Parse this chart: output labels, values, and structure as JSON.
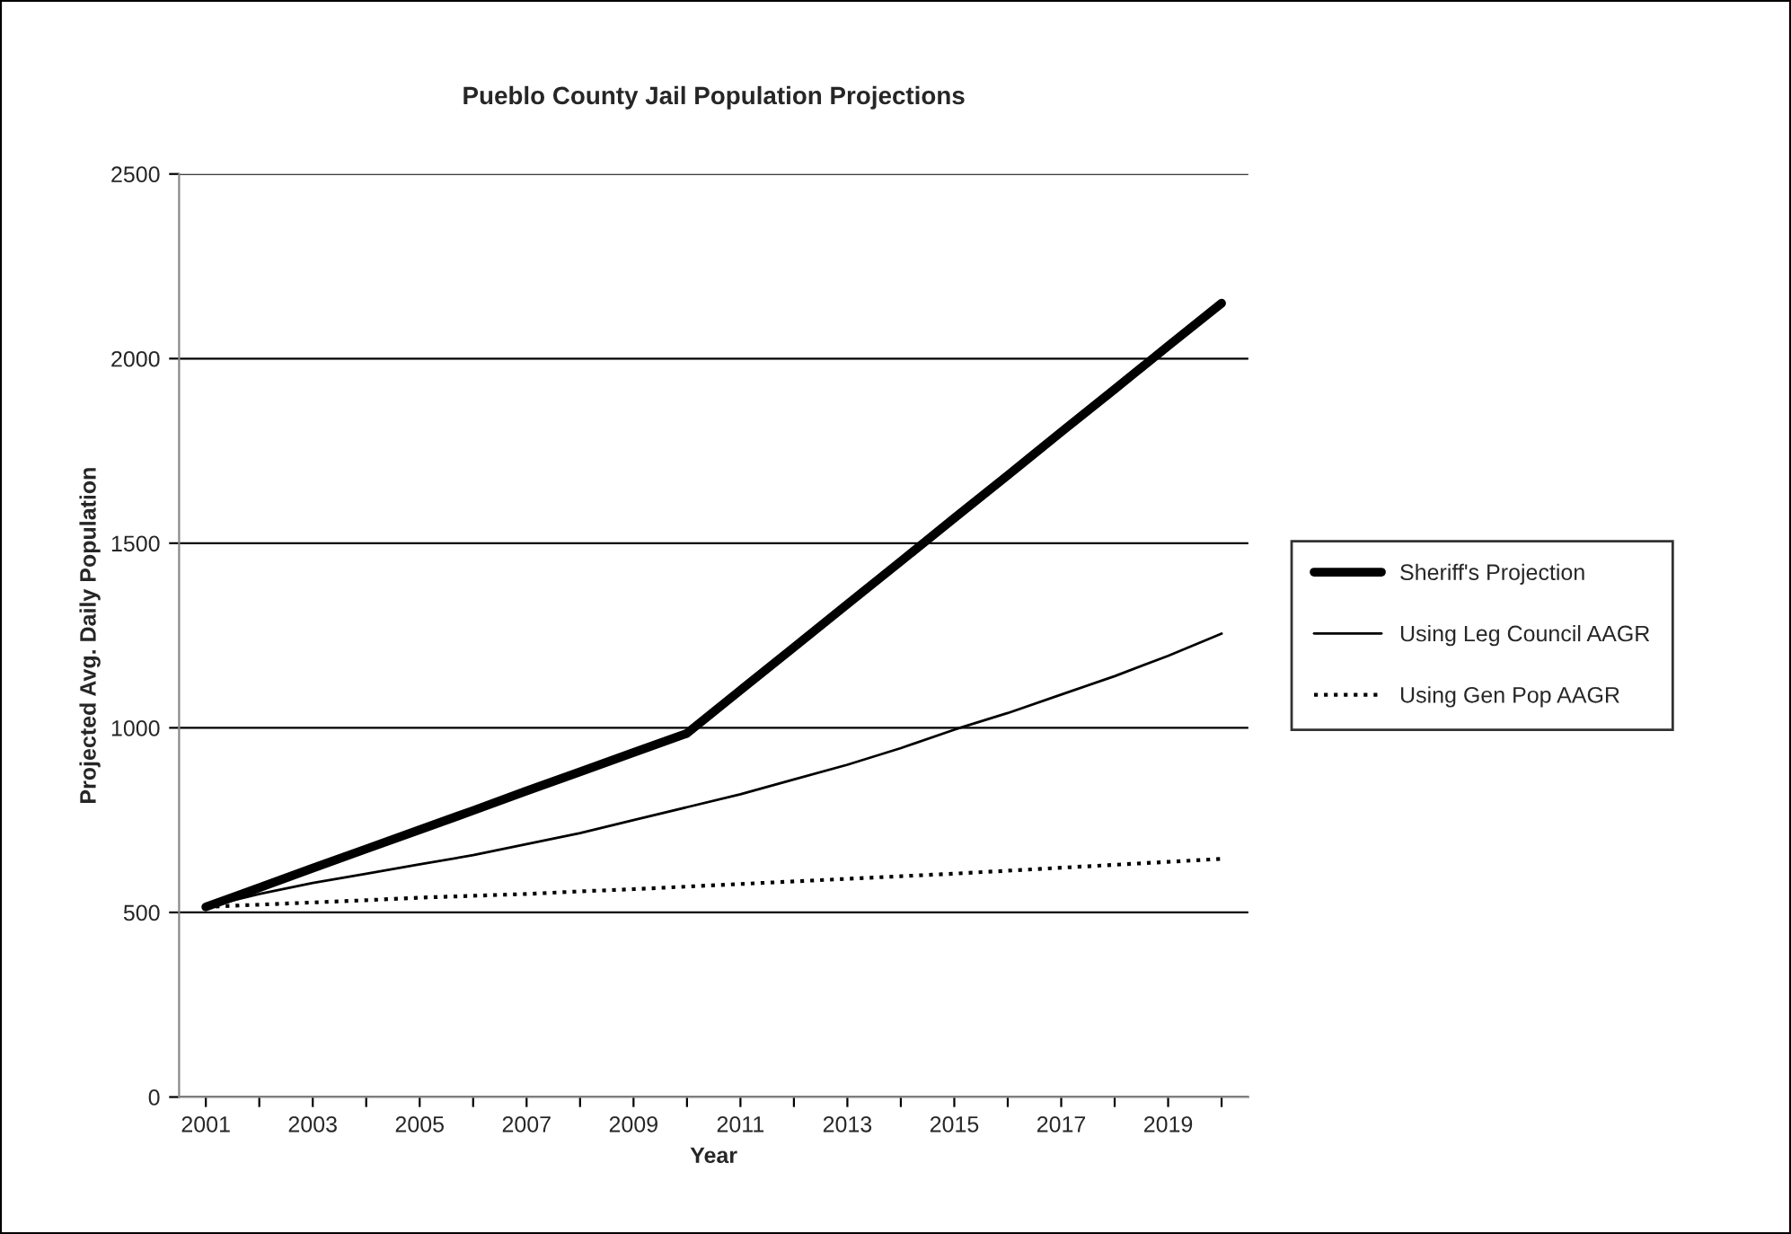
{
  "chart_data": {
    "type": "line",
    "title": "Pueblo County Jail Population Projections",
    "xlabel": "Year",
    "ylabel": "Projected Avg. Daily Population",
    "categories": [
      "2001",
      null,
      "2003",
      null,
      "2005",
      null,
      "2007",
      null,
      "2009",
      null,
      "2011",
      null,
      "2013",
      null,
      "2015",
      null,
      "2017",
      null,
      "2019",
      null
    ],
    "series": [
      {
        "name": "Sheriff's Projection",
        "color": "#000000",
        "line_style": "solid",
        "values": [
          515,
          567,
          620,
          672,
          724,
          776,
          829,
          881,
          933,
          985,
          1102,
          1218,
          1335,
          1451,
          1568,
          1684,
          1801,
          1917,
          2034,
          2150
        ]
      },
      {
        "name": "Using Leg Council AAGR",
        "color": "#000000",
        "line_style": "solid",
        "values": [
          515,
          550,
          580,
          605,
          630,
          655,
          685,
          715,
          750,
          785,
          820,
          860,
          900,
          945,
          995,
          1040,
          1090,
          1140,
          1195,
          1255
        ]
      },
      {
        "name": "Using Gen Pop AAGR",
        "color": "#000000",
        "line_style": "dotted",
        "values": [
          515,
          521,
          527,
          533,
          540,
          545,
          550,
          557,
          563,
          570,
          577,
          584,
          591,
          598,
          605,
          613,
          621,
          629,
          637,
          645
        ]
      }
    ],
    "ylim": [
      0,
      2500
    ],
    "yticks": [
      0,
      500,
      1000,
      1500,
      2000,
      2500
    ],
    "grid": "y",
    "legend": "right",
    "marker": "none"
  }
}
